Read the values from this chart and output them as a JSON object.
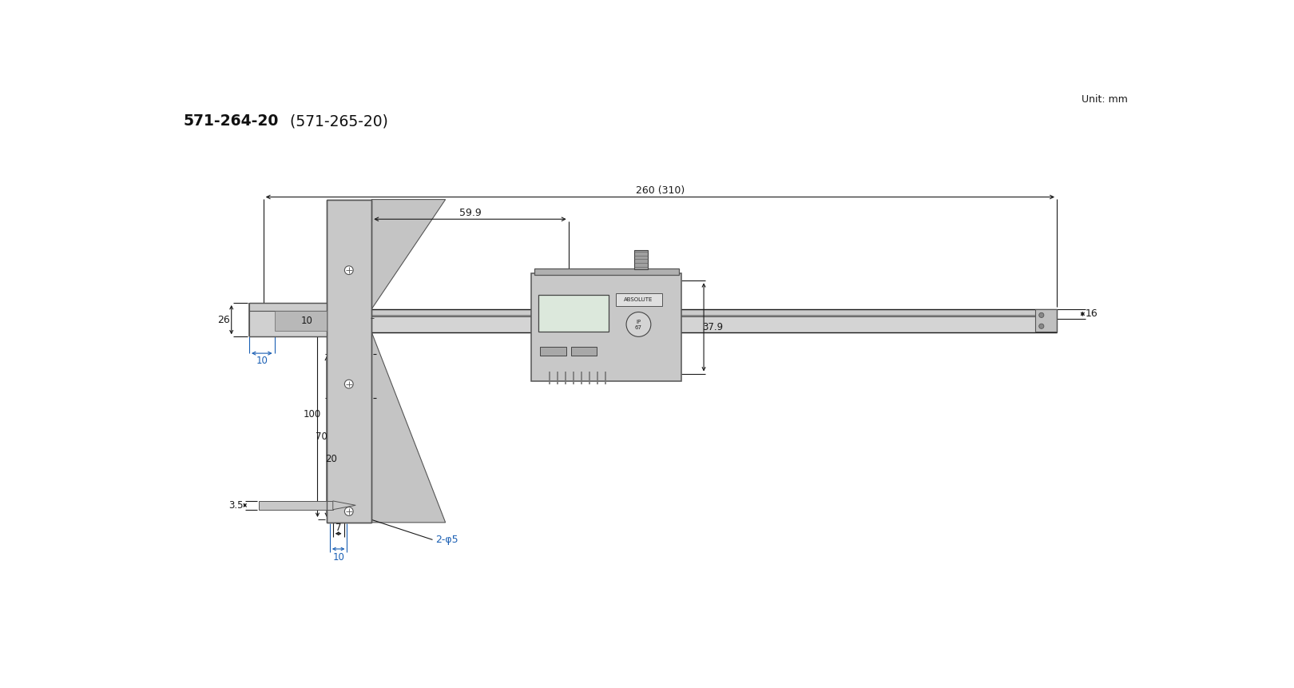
{
  "title_bold": "571-264-20",
  "title_normal": " (571-265-20)",
  "unit_text": "Unit: mm",
  "bg_color": "#ffffff",
  "line_color": "#1a1a1a",
  "blue_color": "#1a5fb4",
  "dim_260": "260 (310)",
  "dim_59_9": "59.9",
  "dim_16": "16",
  "dim_26": "26",
  "dim_10a": "10",
  "dim_10b": "10",
  "dim_100": "100",
  "dim_70": "70",
  "dim_20": "20",
  "dim_37_9": "37.9",
  "dim_3_5": "3.5",
  "dim_7": "7",
  "dim_10c": "10",
  "dim_2_phi5": "2-φ5",
  "body_light": "#d0d0d0",
  "body_mid": "#b8b8b8",
  "body_dark": "#909090",
  "body_edge": "#555555"
}
